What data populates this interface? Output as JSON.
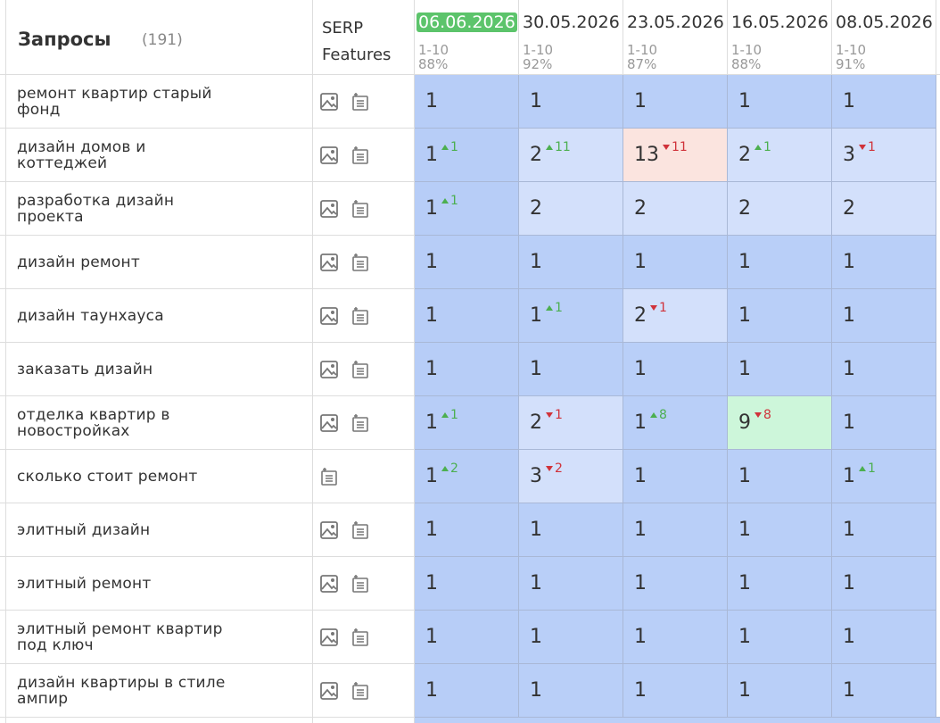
{
  "header": {
    "title": "Запросы",
    "count": "(191)",
    "serp": "SERP Features",
    "dates": [
      {
        "date": "06.06.2026",
        "range": "1-10",
        "pct": "88%",
        "current": true
      },
      {
        "date": "30.05.2026",
        "range": "1-10",
        "pct": "92%"
      },
      {
        "date": "23.05.2026",
        "range": "1-10",
        "pct": "87%"
      },
      {
        "date": "16.05.2026",
        "range": "1-10",
        "pct": "88%"
      },
      {
        "date": "08.05.2026",
        "range": "1-10",
        "pct": "91%"
      }
    ]
  },
  "table": {
    "rows": [
      {
        "query": "ремонт квартир старый фонд",
        "serp_features": [
          "image",
          "doc"
        ],
        "cells": [
          {
            "value": 1,
            "color": "#b7cdf7"
          },
          {
            "value": 1,
            "color": "#b9cff8"
          },
          {
            "value": 1,
            "color": "#b9cff8"
          },
          {
            "value": 1,
            "color": "#b9cff8"
          },
          {
            "value": 1,
            "color": "#b9cff8"
          }
        ]
      },
      {
        "query": "дизайн домов и коттеджей",
        "serp_features": [
          "image",
          "doc"
        ],
        "cells": [
          {
            "value": 1,
            "change": 1,
            "trend": "up",
            "color": "#b7cdf7"
          },
          {
            "value": 2,
            "change": 11,
            "trend": "up",
            "color": "#d3e0fb"
          },
          {
            "value": 13,
            "change": 11,
            "trend": "down",
            "color": "#fbe4df"
          },
          {
            "value": 2,
            "change": 1,
            "trend": "up",
            "color": "#d3e0fb"
          },
          {
            "value": 3,
            "change": 1,
            "trend": "down",
            "color": "#d3e0fb"
          }
        ]
      },
      {
        "query": "разработка дизайн проекта",
        "serp_features": [
          "image",
          "doc"
        ],
        "cells": [
          {
            "value": 1,
            "change": 1,
            "trend": "up",
            "color": "#b7cdf7"
          },
          {
            "value": 2,
            "color": "#d3e0fb"
          },
          {
            "value": 2,
            "color": "#d3e0fb"
          },
          {
            "value": 2,
            "color": "#d3e0fb"
          },
          {
            "value": 2,
            "color": "#d3e0fb"
          }
        ]
      },
      {
        "query": "дизайн ремонт",
        "serp_features": [
          "image",
          "doc"
        ],
        "cells": [
          {
            "value": 1,
            "color": "#b7cdf7"
          },
          {
            "value": 1,
            "color": "#b9cff8"
          },
          {
            "value": 1,
            "color": "#b9cff8"
          },
          {
            "value": 1,
            "color": "#b9cff8"
          },
          {
            "value": 1,
            "color": "#b9cff8"
          }
        ]
      },
      {
        "query": "дизайн таунхауса",
        "serp_features": [
          "image",
          "doc"
        ],
        "cells": [
          {
            "value": 1,
            "color": "#b7cdf7"
          },
          {
            "value": 1,
            "change": 1,
            "trend": "up",
            "color": "#b9cff8"
          },
          {
            "value": 2,
            "change": 1,
            "trend": "down",
            "color": "#d3e0fb"
          },
          {
            "value": 1,
            "color": "#b9cff8"
          },
          {
            "value": 1,
            "color": "#b9cff8"
          }
        ]
      },
      {
        "query": "заказать дизайн",
        "serp_features": [
          "image",
          "doc"
        ],
        "cells": [
          {
            "value": 1,
            "color": "#b7cdf7"
          },
          {
            "value": 1,
            "color": "#b9cff8"
          },
          {
            "value": 1,
            "color": "#b9cff8"
          },
          {
            "value": 1,
            "color": "#b9cff8"
          },
          {
            "value": 1,
            "color": "#b9cff8"
          }
        ]
      },
      {
        "query": "отделка квартир в новостройках",
        "serp_features": [
          "image",
          "doc"
        ],
        "cells": [
          {
            "value": 1,
            "change": 1,
            "trend": "up",
            "color": "#b7cdf7"
          },
          {
            "value": 2,
            "change": 1,
            "trend": "down",
            "color": "#d3e0fb"
          },
          {
            "value": 1,
            "change": 8,
            "trend": "up",
            "color": "#b9cff8"
          },
          {
            "value": 9,
            "change": 8,
            "trend": "down",
            "color": "#cdf6da"
          },
          {
            "value": 1,
            "color": "#b9cff8"
          }
        ]
      },
      {
        "query": "сколько стоит ремонт",
        "serp_features": [
          "doc"
        ],
        "cells": [
          {
            "value": 1,
            "change": 2,
            "trend": "up",
            "color": "#b7cdf7"
          },
          {
            "value": 3,
            "change": 2,
            "trend": "down",
            "color": "#d3e0fb"
          },
          {
            "value": 1,
            "color": "#b9cff8"
          },
          {
            "value": 1,
            "color": "#b9cff8"
          },
          {
            "value": 1,
            "change": 1,
            "trend": "up",
            "color": "#b9cff8"
          }
        ]
      },
      {
        "query": "элитный дизайн",
        "serp_features": [
          "image",
          "doc"
        ],
        "cells": [
          {
            "value": 1,
            "color": "#b7cdf7"
          },
          {
            "value": 1,
            "color": "#b9cff8"
          },
          {
            "value": 1,
            "color": "#b9cff8"
          },
          {
            "value": 1,
            "color": "#b9cff8"
          },
          {
            "value": 1,
            "color": "#b9cff8"
          }
        ]
      },
      {
        "query": "элитный ремонт",
        "serp_features": [
          "image",
          "doc"
        ],
        "cells": [
          {
            "value": 1,
            "color": "#b7cdf7"
          },
          {
            "value": 1,
            "color": "#b9cff8"
          },
          {
            "value": 1,
            "color": "#b9cff8"
          },
          {
            "value": 1,
            "color": "#b9cff8"
          },
          {
            "value": 1,
            "color": "#b9cff8"
          }
        ]
      },
      {
        "query": "элитный ремонт квартир под ключ",
        "serp_features": [
          "image",
          "doc"
        ],
        "cells": [
          {
            "value": 1,
            "color": "#b7cdf7"
          },
          {
            "value": 1,
            "color": "#b9cff8"
          },
          {
            "value": 1,
            "color": "#b9cff8"
          },
          {
            "value": 1,
            "color": "#b9cff8"
          },
          {
            "value": 1,
            "color": "#b9cff8"
          }
        ]
      },
      {
        "query": "дизайн квартиры в стиле ампир",
        "serp_features": [
          "image",
          "doc"
        ],
        "cells": [
          {
            "value": 1,
            "color": "#b7cdf7"
          },
          {
            "value": 1,
            "color": "#b9cff8"
          },
          {
            "value": 1,
            "color": "#b9cff8"
          },
          {
            "value": 1,
            "color": "#b9cff8"
          },
          {
            "value": 1,
            "color": "#b9cff8"
          }
        ]
      }
    ]
  }
}
